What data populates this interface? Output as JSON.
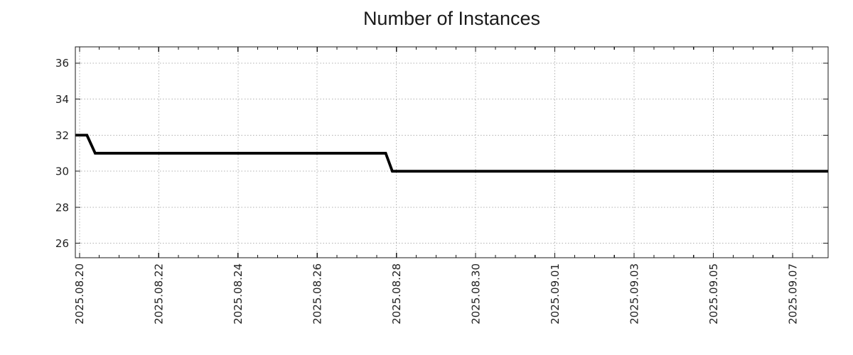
{
  "page": {
    "background": "#ffffff"
  },
  "chart_data": {
    "type": "line",
    "title": "Number of Instances",
    "xlabel": "",
    "ylabel": "",
    "legend": {
      "show": false
    },
    "grid": {
      "show": true,
      "style": "dotted",
      "on": "major-ticks-both-axes"
    },
    "xlim": [
      "2025-08-19T21:30:00Z",
      "2025-09-07T21:30:00Z"
    ],
    "ylim": [
      25.2,
      36.9
    ],
    "y_ticks": [
      26,
      28,
      30,
      32,
      34,
      36
    ],
    "x_ticks_major": [
      {
        "label": "2025.08.20",
        "t": "2025-08-20T00:00:00Z"
      },
      {
        "label": "2025.08.22",
        "t": "2025-08-22T00:00:00Z"
      },
      {
        "label": "2025.08.24",
        "t": "2025-08-24T00:00:00Z"
      },
      {
        "label": "2025.08.26",
        "t": "2025-08-26T00:00:00Z"
      },
      {
        "label": "2025.08.28",
        "t": "2025-08-28T00:00:00Z"
      },
      {
        "label": "2025.08.30",
        "t": "2025-08-30T00:00:00Z"
      },
      {
        "label": "2025.09.01",
        "t": "2025-09-01T00:00:00Z"
      },
      {
        "label": "2025.09.03",
        "t": "2025-09-03T00:00:00Z"
      },
      {
        "label": "2025.09.05",
        "t": "2025-09-05T00:00:00Z"
      },
      {
        "label": "2025.09.07",
        "t": "2025-09-07T00:00:00Z"
      }
    ],
    "x_minor_tick_interval_days": 0.5,
    "x_minor_tick_base": "2025-08-20T00:00:00Z",
    "series": [
      {
        "name": "Number of Instances",
        "color": "#000000",
        "line_width": 3.8,
        "points": [
          {
            "t": "2025-08-19T21:30:00Z",
            "v": 32
          },
          {
            "t": "2025-08-20T04:30:00Z",
            "v": 32
          },
          {
            "t": "2025-08-20T09:30:00Z",
            "v": 31
          },
          {
            "t": "2025-08-27T17:30:00Z",
            "v": 31
          },
          {
            "t": "2025-08-27T21:30:00Z",
            "v": 30
          },
          {
            "t": "2025-09-07T21:30:00Z",
            "v": 30
          }
        ]
      }
    ],
    "colors": {
      "grid": "#b0b0b0",
      "axis": "#1a1a1a",
      "text": "#222222",
      "background": "#ffffff"
    }
  }
}
